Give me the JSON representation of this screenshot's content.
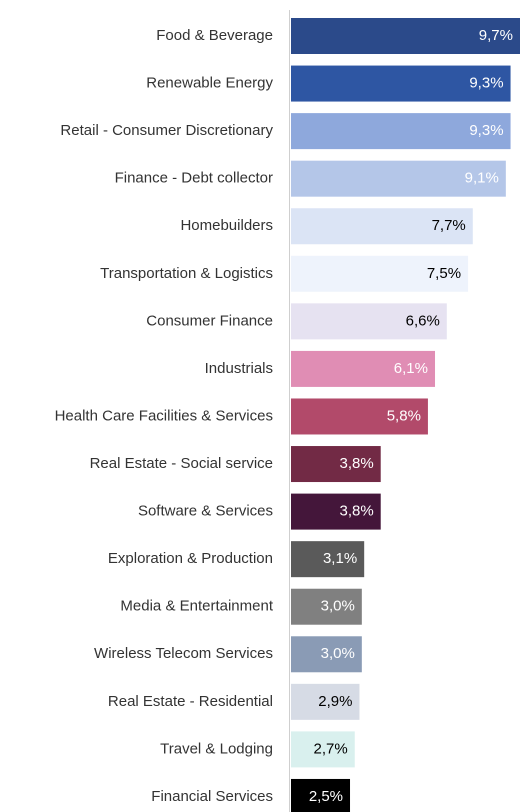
{
  "chart_data": {
    "type": "bar",
    "orientation": "horizontal",
    "categories": [
      "Food & Beverage",
      "Renewable Energy",
      "Retail - Consumer Discretionary",
      "Finance - Debt collector",
      "Homebuilders",
      "Transportation & Logistics",
      "Consumer Finance",
      "Industrials",
      "Health Care Facilities & Services",
      "Real Estate - Social service",
      "Software & Services",
      "Exploration & Production",
      "Media & Entertainment",
      "Wireless Telecom Services",
      "Real Estate - Residential",
      "Travel & Lodging",
      "Financial Services"
    ],
    "values": [
      9.7,
      9.3,
      9.3,
      9.1,
      7.7,
      7.5,
      6.6,
      6.1,
      5.8,
      3.8,
      3.8,
      3.1,
      3.0,
      3.0,
      2.9,
      2.7,
      2.5
    ],
    "value_labels": [
      "9,7%",
      "9,3%",
      "9,3%",
      "9,1%",
      "7,7%",
      "7,5%",
      "6,6%",
      "6,1%",
      "5,8%",
      "3,8%",
      "3,8%",
      "3,1%",
      "3,0%",
      "3,0%",
      "2,9%",
      "2,7%",
      "2,5%"
    ],
    "colors": [
      "#2b4a8a",
      "#2e56a3",
      "#8ea8dc",
      "#b4c6e8",
      "#dbe4f5",
      "#eef3fc",
      "#e6e2f1",
      "#e08db4",
      "#b24a6a",
      "#722a45",
      "#44163a",
      "#5a5a5a",
      "#808080",
      "#8a9bb5",
      "#d6dbe5",
      "#d9f0ee",
      "#000000"
    ],
    "label_colors": [
      "#ffffff",
      "#ffffff",
      "#ffffff",
      "#ffffff",
      "#000000",
      "#000000",
      "#000000",
      "#ffffff",
      "#ffffff",
      "#ffffff",
      "#ffffff",
      "#ffffff",
      "#ffffff",
      "#ffffff",
      "#000000",
      "#000000",
      "#ffffff"
    ]
  }
}
